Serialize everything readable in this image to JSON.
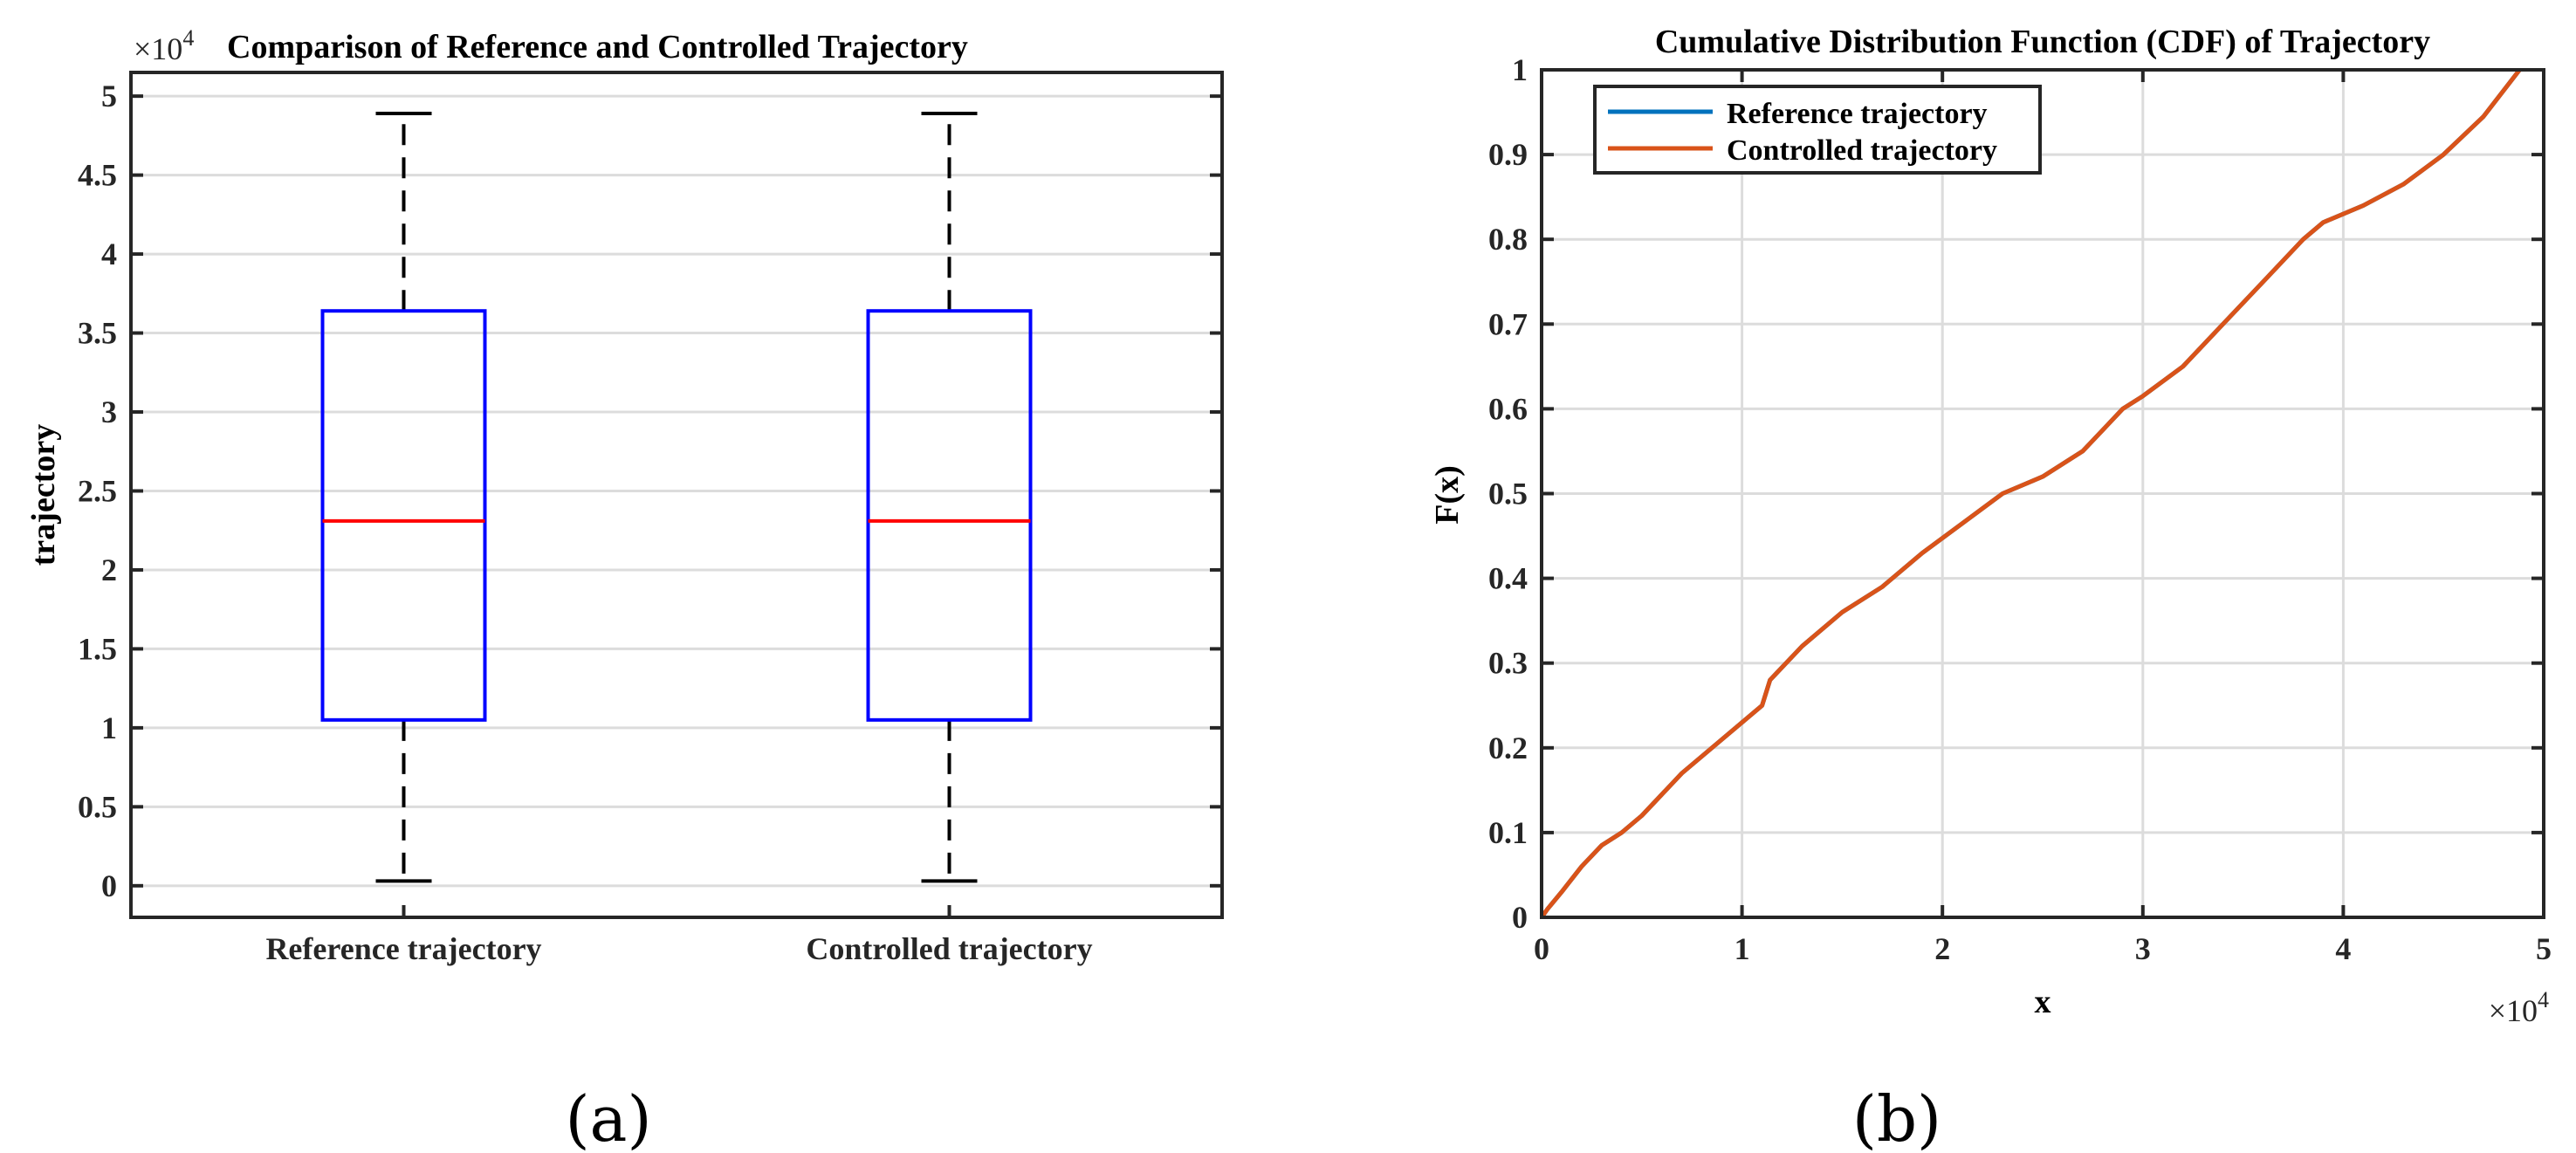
{
  "chart_data": [
    {
      "panel": "(a)",
      "type": "box",
      "title": "Comparison of Reference and Controlled Trajectory",
      "exponent_label": "×10",
      "exponent_power": "4",
      "ylabel": "trajectory",
      "xlabel": "",
      "ylim": [
        -0.2,
        5.15
      ],
      "ytick_values": [
        0,
        0.5,
        1,
        1.5,
        2,
        2.5,
        3,
        3.5,
        4,
        4.5,
        5
      ],
      "ytick_labels": [
        "0",
        "0.5",
        "1",
        "1.5",
        "2",
        "2.5",
        "3",
        "3.5",
        "4",
        "4.5",
        "5"
      ],
      "grid": true,
      "categories": [
        "Reference trajectory",
        "Controlled trajectory"
      ],
      "boxes": [
        {
          "name": "Reference trajectory",
          "whisker_low": 0.03,
          "q1": 1.05,
          "median": 2.31,
          "q3": 3.64,
          "whisker_high": 4.89
        },
        {
          "name": "Controlled trajectory",
          "whisker_low": 0.03,
          "q1": 1.05,
          "median": 2.31,
          "q3": 3.64,
          "whisker_high": 4.89
        }
      ],
      "colors": {
        "box": "#0000ff",
        "median": "#ff0000",
        "whisker": "#000000",
        "grid": "#dcdcdc"
      }
    },
    {
      "panel": "(b)",
      "type": "line",
      "title": "Cumulative Distribution Function (CDF) of Trajectory",
      "xlabel": "x",
      "ylabel": "F(x)",
      "exponent_label": "×10",
      "exponent_power": "4",
      "xlim": [
        0,
        5
      ],
      "ylim": [
        0,
        1
      ],
      "xtick_values": [
        0,
        1,
        2,
        3,
        4,
        5
      ],
      "xtick_labels": [
        "0",
        "1",
        "2",
        "3",
        "4",
        "5"
      ],
      "ytick_values": [
        0,
        0.1,
        0.2,
        0.3,
        0.4,
        0.5,
        0.6,
        0.7,
        0.8,
        0.9,
        1
      ],
      "ytick_labels": [
        "0",
        "0.1",
        "0.2",
        "0.3",
        "0.4",
        "0.5",
        "0.6",
        "0.7",
        "0.8",
        "0.9",
        "1"
      ],
      "grid": true,
      "legend_position": "top-left",
      "series": [
        {
          "name": "Reference trajectory",
          "color": "#0072bd",
          "x": [
            0,
            0.03,
            0.1,
            0.2,
            0.3,
            0.4,
            0.5,
            0.7,
            0.9,
            1.1,
            1.14,
            1.3,
            1.5,
            1.7,
            1.9,
            2.1,
            2.3,
            2.5,
            2.7,
            2.9,
            3.0,
            3.2,
            3.4,
            3.6,
            3.8,
            3.9,
            4.1,
            4.3,
            4.5,
            4.7,
            4.88
          ],
          "y": [
            0,
            0.01,
            0.03,
            0.06,
            0.085,
            0.1,
            0.12,
            0.17,
            0.21,
            0.25,
            0.28,
            0.32,
            0.36,
            0.39,
            0.43,
            0.465,
            0.5,
            0.52,
            0.55,
            0.6,
            0.615,
            0.65,
            0.7,
            0.75,
            0.8,
            0.82,
            0.84,
            0.865,
            0.9,
            0.945,
            1.0
          ]
        },
        {
          "name": "Controlled trajectory",
          "color": "#d95319",
          "x": [
            0,
            0.03,
            0.1,
            0.2,
            0.3,
            0.4,
            0.5,
            0.7,
            0.9,
            1.1,
            1.14,
            1.3,
            1.5,
            1.7,
            1.9,
            2.1,
            2.3,
            2.5,
            2.7,
            2.9,
            3.0,
            3.2,
            3.4,
            3.6,
            3.8,
            3.9,
            4.1,
            4.3,
            4.5,
            4.7,
            4.88
          ],
          "y": [
            0,
            0.01,
            0.03,
            0.06,
            0.085,
            0.1,
            0.12,
            0.17,
            0.21,
            0.25,
            0.28,
            0.32,
            0.36,
            0.39,
            0.43,
            0.465,
            0.5,
            0.52,
            0.55,
            0.6,
            0.615,
            0.65,
            0.7,
            0.75,
            0.8,
            0.82,
            0.84,
            0.865,
            0.9,
            0.945,
            1.0
          ]
        }
      ]
    }
  ]
}
